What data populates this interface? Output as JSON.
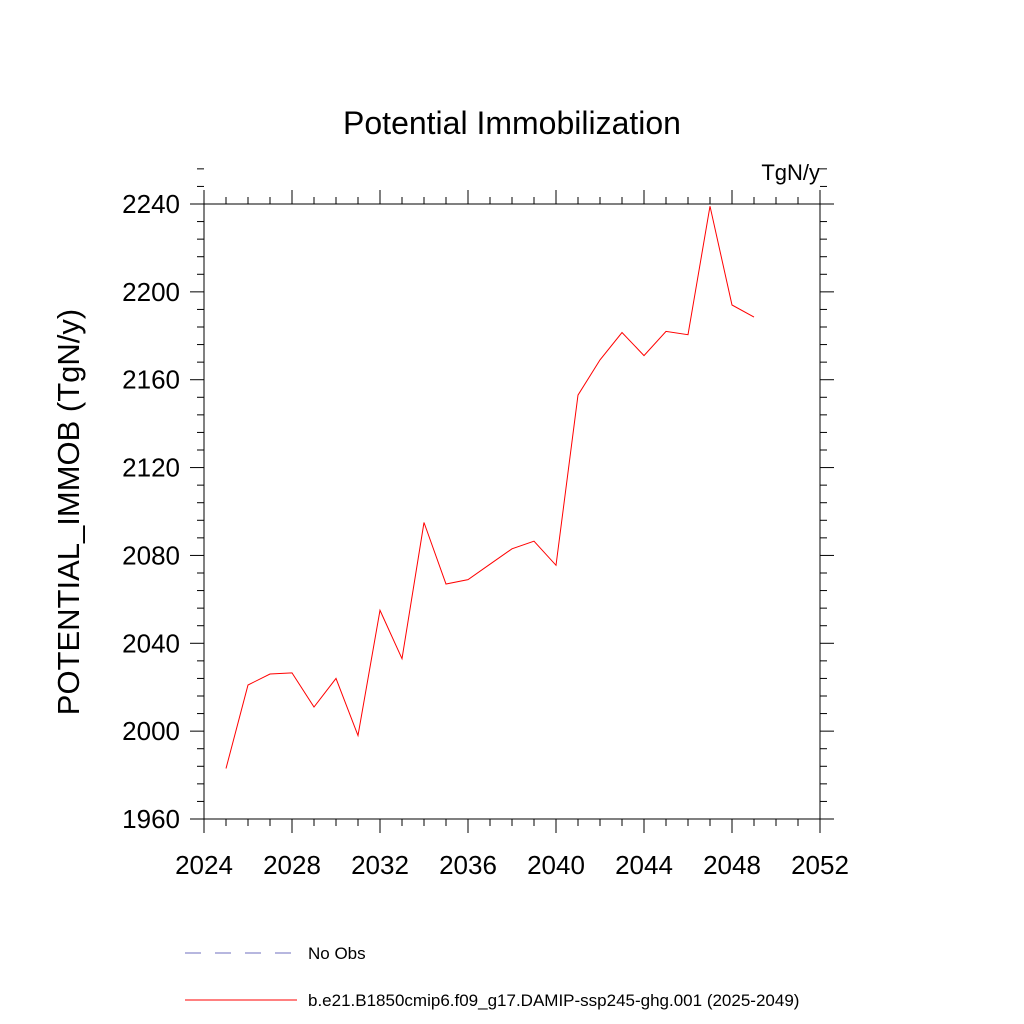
{
  "chart_data": {
    "type": "line",
    "title": "Potential Immobilization",
    "units_label": "TgN/y",
    "ylabel": "POTENTIAL_IMMOB  (TgN/y)",
    "xlabel": "",
    "xlim": [
      2024,
      2052
    ],
    "ylim": [
      1960,
      2240
    ],
    "xticks": [
      2024,
      2028,
      2032,
      2036,
      2040,
      2044,
      2048,
      2052
    ],
    "yticks": [
      1960,
      2000,
      2040,
      2080,
      2120,
      2160,
      2200,
      2240
    ],
    "grid": false,
    "legend_position": "bottom",
    "series": [
      {
        "name": "No Obs",
        "color": "#6f6fbf",
        "dash": "dashed",
        "x": [],
        "values": []
      },
      {
        "name": "b.e21.B1850cmip6.f09_g17.DAMIP-ssp245-ghg.001 (2025-2049)",
        "color": "#ff0000",
        "dash": "solid",
        "x": [
          2025,
          2026,
          2027,
          2028,
          2029,
          2030,
          2031,
          2032,
          2033,
          2034,
          2035,
          2036,
          2037,
          2038,
          2039,
          2040,
          2041,
          2042,
          2043,
          2044,
          2045,
          2046,
          2047,
          2048,
          2049
        ],
        "values": [
          1983,
          2021,
          2026,
          2026.5,
          2011,
          2024,
          1998,
          2055,
          2033,
          2095,
          2067,
          2069,
          2076,
          2083,
          2086.5,
          2075.5,
          2153,
          2169,
          2181.5,
          2171,
          2182,
          2180.5,
          2239,
          2194,
          2188.5
        ]
      }
    ]
  }
}
